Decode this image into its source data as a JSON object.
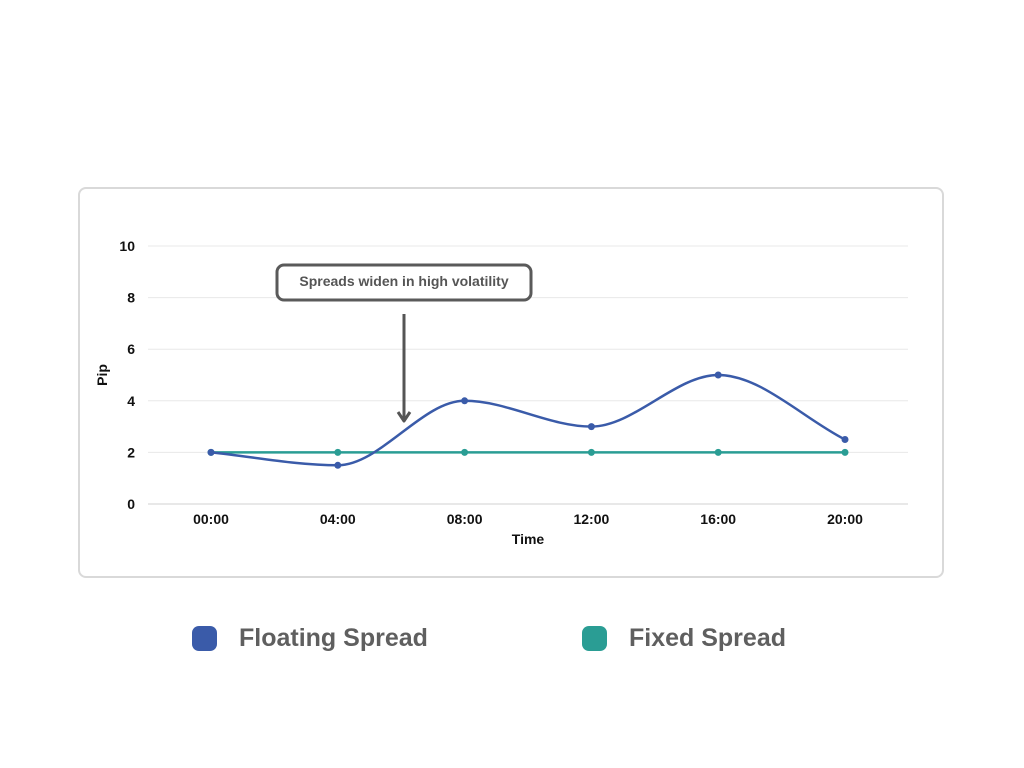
{
  "chart_data": {
    "type": "line",
    "x": [
      "00:00",
      "04:00",
      "08:00",
      "12:00",
      "16:00",
      "20:00"
    ],
    "series": [
      {
        "name": "Floating Spread",
        "values": [
          2,
          1.5,
          4,
          3,
          5,
          2.5
        ],
        "color": "#3a5ba9",
        "smooth": true
      },
      {
        "name": "Fixed Spread",
        "values": [
          2,
          2,
          2,
          2,
          2,
          2
        ],
        "color": "#2a9d94",
        "smooth": false
      }
    ],
    "xlabel": "Time",
    "ylabel": "Pip",
    "ylim": [
      0,
      10
    ],
    "yticks": [
      0,
      2,
      4,
      6,
      8,
      10
    ],
    "grid": true,
    "annotation": {
      "text": "Spreads widen in high volatility",
      "x": 6,
      "y": 3
    }
  },
  "legend": {
    "items": [
      {
        "label": "Floating Spread",
        "color": "#3a5ba9"
      },
      {
        "label": "Fixed Spread",
        "color": "#2a9d94"
      }
    ]
  }
}
